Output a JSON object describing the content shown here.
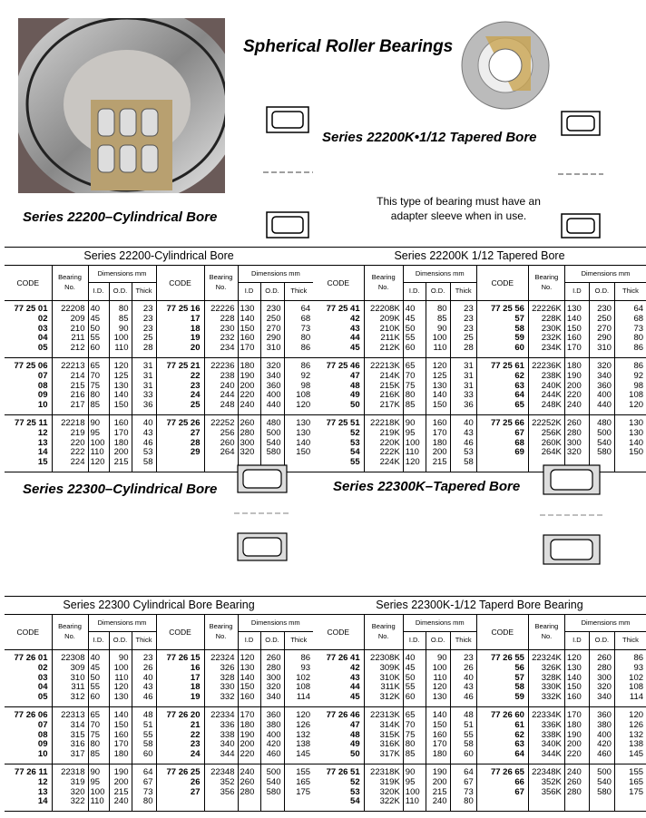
{
  "title": "Spherical Roller Bearings",
  "heading_22200k": "Series 22200K•1/12 Tapered Bore",
  "adapter_note": "This type of bearing must have an adapter sleeve when in use.",
  "heading_22200": "Series 22200–Cylindrical Bore",
  "heading_22300": "Series 22300–Cylindrical Bore",
  "heading_22300k": "Series 22300K–Tapered Bore",
  "columns": {
    "code": "CODE",
    "bearing": "Bearing No.",
    "dimensions": "Dimensions mm",
    "id": "I.D.",
    "id_right": "I.D",
    "od": "O.D.",
    "thick": "Thick"
  },
  "tables": [
    {
      "title": "Series 22200-Cylindrical Bore",
      "left": [
        [
          [
            "77 25 01",
            "22208",
            "40",
            "80",
            "23"
          ],
          [
            "02",
            "209",
            "45",
            "85",
            "23"
          ],
          [
            "03",
            "210",
            "50",
            "90",
            "23"
          ],
          [
            "04",
            "211",
            "55",
            "100",
            "25"
          ],
          [
            "05",
            "212",
            "60",
            "110",
            "28"
          ]
        ],
        [
          [
            "77 25 06",
            "22213",
            "65",
            "120",
            "31"
          ],
          [
            "07",
            "214",
            "70",
            "125",
            "31"
          ],
          [
            "08",
            "215",
            "75",
            "130",
            "31"
          ],
          [
            "09",
            "216",
            "80",
            "140",
            "33"
          ],
          [
            "10",
            "217",
            "85",
            "150",
            "36"
          ]
        ],
        [
          [
            "77 25 11",
            "22218",
            "90",
            "160",
            "40"
          ],
          [
            "12",
            "219",
            "95",
            "170",
            "43"
          ],
          [
            "13",
            "220",
            "100",
            "180",
            "46"
          ],
          [
            "14",
            "222",
            "110",
            "200",
            "53"
          ],
          [
            "15",
            "224",
            "120",
            "215",
            "58"
          ]
        ]
      ],
      "right": [
        [
          [
            "77 25 16",
            "22226",
            "130",
            "230",
            "64"
          ],
          [
            "17",
            "228",
            "140",
            "250",
            "68"
          ],
          [
            "18",
            "230",
            "150",
            "270",
            "73"
          ],
          [
            "19",
            "232",
            "160",
            "290",
            "80"
          ],
          [
            "20",
            "234",
            "170",
            "310",
            "86"
          ]
        ],
        [
          [
            "77 25 21",
            "22236",
            "180",
            "320",
            "86"
          ],
          [
            "22",
            "238",
            "190",
            "340",
            "92"
          ],
          [
            "23",
            "240",
            "200",
            "360",
            "98"
          ],
          [
            "24",
            "244",
            "220",
            "400",
            "108"
          ],
          [
            "25",
            "248",
            "240",
            "440",
            "120"
          ]
        ],
        [
          [
            "77 25 26",
            "22252",
            "260",
            "480",
            "130"
          ],
          [
            "27",
            "256",
            "280",
            "500",
            "130"
          ],
          [
            "28",
            "260",
            "300",
            "540",
            "140"
          ],
          [
            "29",
            "264",
            "320",
            "580",
            "150"
          ]
        ]
      ]
    },
    {
      "title": "Series 22200K  1/12 Tapered Bore",
      "left": [
        [
          [
            "77 25 41",
            "22208K",
            "40",
            "80",
            "23"
          ],
          [
            "42",
            "209K",
            "45",
            "85",
            "23"
          ],
          [
            "43",
            "210K",
            "50",
            "90",
            "23"
          ],
          [
            "44",
            "211K",
            "55",
            "100",
            "25"
          ],
          [
            "45",
            "212K",
            "60",
            "110",
            "28"
          ]
        ],
        [
          [
            "77 25 46",
            "22213K",
            "65",
            "120",
            "31"
          ],
          [
            "47",
            "214K",
            "70",
            "125",
            "31"
          ],
          [
            "48",
            "215K",
            "75",
            "130",
            "31"
          ],
          [
            "49",
            "216K",
            "80",
            "140",
            "33"
          ],
          [
            "50",
            "217K",
            "85",
            "150",
            "36"
          ]
        ],
        [
          [
            "77 25 51",
            "22218K",
            "90",
            "160",
            "40"
          ],
          [
            "52",
            "219K",
            "95",
            "170",
            "43"
          ],
          [
            "53",
            "220K",
            "100",
            "180",
            "46"
          ],
          [
            "54",
            "222K",
            "110",
            "200",
            "53"
          ],
          [
            "55",
            "224K",
            "120",
            "215",
            "58"
          ]
        ]
      ],
      "right": [
        [
          [
            "77 25 56",
            "22226K",
            "130",
            "230",
            "64"
          ],
          [
            "57",
            "228K",
            "140",
            "250",
            "68"
          ],
          [
            "58",
            "230K",
            "150",
            "270",
            "73"
          ],
          [
            "59",
            "232K",
            "160",
            "290",
            "80"
          ],
          [
            "60",
            "234K",
            "170",
            "310",
            "86"
          ]
        ],
        [
          [
            "77 25 61",
            "22236K",
            "180",
            "320",
            "86"
          ],
          [
            "62",
            "238K",
            "190",
            "340",
            "92"
          ],
          [
            "63",
            "240K",
            "200",
            "360",
            "98"
          ],
          [
            "64",
            "244K",
            "220",
            "400",
            "108"
          ],
          [
            "65",
            "248K",
            "240",
            "440",
            "120"
          ]
        ],
        [
          [
            "77 25 66",
            "22252K",
            "260",
            "480",
            "130"
          ],
          [
            "67",
            "256K",
            "280",
            "500",
            "130"
          ],
          [
            "68",
            "260K",
            "300",
            "540",
            "140"
          ],
          [
            "69",
            "264K",
            "320",
            "580",
            "150"
          ]
        ]
      ]
    },
    {
      "title": "Series 22300  Cylindrical Bore Bearing",
      "left": [
        [
          [
            "77 26 01",
            "22308",
            "40",
            "90",
            "23"
          ],
          [
            "02",
            "309",
            "45",
            "100",
            "26"
          ],
          [
            "03",
            "310",
            "50",
            "110",
            "40"
          ],
          [
            "04",
            "311",
            "55",
            "120",
            "43"
          ],
          [
            "05",
            "312",
            "60",
            "130",
            "46"
          ]
        ],
        [
          [
            "77 26 06",
            "22313",
            "65",
            "140",
            "48"
          ],
          [
            "07",
            "314",
            "70",
            "150",
            "51"
          ],
          [
            "08",
            "315",
            "75",
            "160",
            "55"
          ],
          [
            "09",
            "316",
            "80",
            "170",
            "58"
          ],
          [
            "10",
            "317",
            "85",
            "180",
            "60"
          ]
        ],
        [
          [
            "77 26 11",
            "22318",
            "90",
            "190",
            "64"
          ],
          [
            "12",
            "319",
            "95",
            "200",
            "67"
          ],
          [
            "13",
            "320",
            "100",
            "215",
            "73"
          ],
          [
            "14",
            "322",
            "110",
            "240",
            "80"
          ]
        ]
      ],
      "right": [
        [
          [
            "77 26 15",
            "22324",
            "120",
            "260",
            "86"
          ],
          [
            "16",
            "326",
            "130",
            "280",
            "93"
          ],
          [
            "17",
            "328",
            "140",
            "300",
            "102"
          ],
          [
            "18",
            "330",
            "150",
            "320",
            "108"
          ],
          [
            "19",
            "332",
            "160",
            "340",
            "114"
          ]
        ],
        [
          [
            "77 26 20",
            "22334",
            "170",
            "360",
            "120"
          ],
          [
            "21",
            "336",
            "180",
            "380",
            "126"
          ],
          [
            "22",
            "338",
            "190",
            "400",
            "132"
          ],
          [
            "23",
            "340",
            "200",
            "420",
            "138"
          ],
          [
            "24",
            "344",
            "220",
            "460",
            "145"
          ]
        ],
        [
          [
            "77 26 25",
            "22348",
            "240",
            "500",
            "155"
          ],
          [
            "26",
            "352",
            "260",
            "540",
            "165"
          ],
          [
            "27",
            "356",
            "280",
            "580",
            "175"
          ]
        ]
      ]
    },
    {
      "title": "Series 22300K-1/12 Taperd Bore Bearing",
      "left": [
        [
          [
            "77 26 41",
            "22308K",
            "40",
            "90",
            "23"
          ],
          [
            "42",
            "309K",
            "45",
            "100",
            "26"
          ],
          [
            "43",
            "310K",
            "50",
            "110",
            "40"
          ],
          [
            "44",
            "311K",
            "55",
            "120",
            "43"
          ],
          [
            "45",
            "312K",
            "60",
            "130",
            "46"
          ]
        ],
        [
          [
            "77 26 46",
            "22313K",
            "65",
            "140",
            "48"
          ],
          [
            "47",
            "314K",
            "70",
            "150",
            "51"
          ],
          [
            "48",
            "315K",
            "75",
            "160",
            "55"
          ],
          [
            "49",
            "316K",
            "80",
            "170",
            "58"
          ],
          [
            "50",
            "317K",
            "85",
            "180",
            "60"
          ]
        ],
        [
          [
            "77 26 51",
            "22318K",
            "90",
            "190",
            "64"
          ],
          [
            "52",
            "319K",
            "95",
            "200",
            "67"
          ],
          [
            "53",
            "320K",
            "100",
            "215",
            "73"
          ],
          [
            "54",
            "322K",
            "110",
            "240",
            "80"
          ]
        ]
      ],
      "right": [
        [
          [
            "77 26 55",
            "22324K",
            "120",
            "260",
            "86"
          ],
          [
            "56",
            "326K",
            "130",
            "280",
            "93"
          ],
          [
            "57",
            "328K",
            "140",
            "300",
            "102"
          ],
          [
            "58",
            "330K",
            "150",
            "320",
            "108"
          ],
          [
            "59",
            "332K",
            "160",
            "340",
            "114"
          ]
        ],
        [
          [
            "77 26 60",
            "22334K",
            "170",
            "360",
            "120"
          ],
          [
            "61",
            "336K",
            "180",
            "380",
            "126"
          ],
          [
            "62",
            "338K",
            "190",
            "400",
            "132"
          ],
          [
            "63",
            "340K",
            "200",
            "420",
            "138"
          ],
          [
            "64",
            "344K",
            "220",
            "460",
            "145"
          ]
        ],
        [
          [
            "77 26 65",
            "22348K",
            "240",
            "500",
            "155"
          ],
          [
            "66",
            "352K",
            "260",
            "540",
            "165"
          ],
          [
            "67",
            "356K",
            "280",
            "580",
            "175"
          ]
        ]
      ]
    }
  ]
}
